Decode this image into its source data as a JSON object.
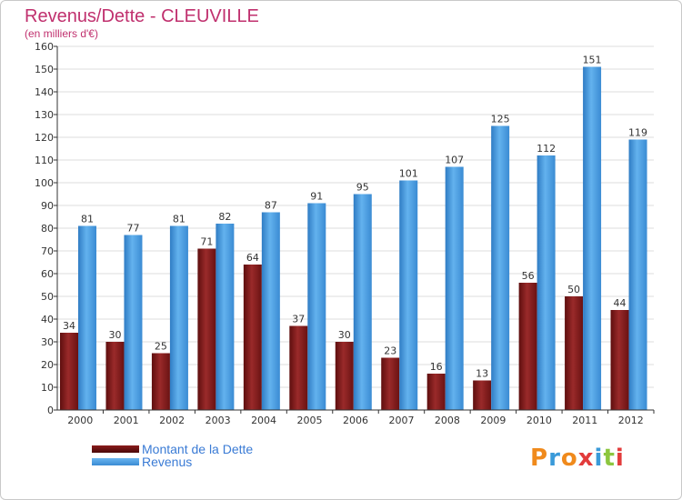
{
  "header": {
    "title": "Revenus/Dette - CLEUVILLE",
    "subtitle": "(en milliers d'€)"
  },
  "brand": {
    "letters": [
      "P",
      "r",
      "o",
      "x",
      "i",
      "t",
      "i"
    ],
    "colors": [
      "#f08a1c",
      "#3a9ad9",
      "#f08a1c",
      "#e23b3b",
      "#3a9ad9",
      "#8cc63f",
      "#e23b3b"
    ]
  },
  "colors": {
    "debt": "#8b1c1c",
    "revenue": "#4a9fe0",
    "grid": "#dddddd",
    "axis": "#333333"
  },
  "chart_data": {
    "type": "bar",
    "title": "Revenus/Dette - CLEUVILLE",
    "ylabel": "(en milliers d'€)",
    "xlabel": "",
    "ylim": [
      0,
      160
    ],
    "yticks": [
      0,
      10,
      20,
      30,
      40,
      50,
      60,
      70,
      80,
      90,
      100,
      110,
      120,
      130,
      140,
      150,
      160
    ],
    "grid": true,
    "legend_position": "bottom-left",
    "categories": [
      "2000",
      "2001",
      "2002",
      "2003",
      "2004",
      "2005",
      "2006",
      "2007",
      "2008",
      "2009",
      "2010",
      "2011",
      "2012"
    ],
    "series": [
      {
        "name": "Montant de la Dette",
        "color": "#8b1c1c",
        "values": [
          34,
          30,
          25,
          71,
          64,
          37,
          30,
          23,
          16,
          13,
          56,
          50,
          44
        ]
      },
      {
        "name": "Revenus",
        "color": "#4a9fe0",
        "values": [
          81,
          77,
          81,
          82,
          87,
          91,
          95,
          101,
          107,
          125,
          112,
          151,
          119
        ]
      }
    ]
  }
}
